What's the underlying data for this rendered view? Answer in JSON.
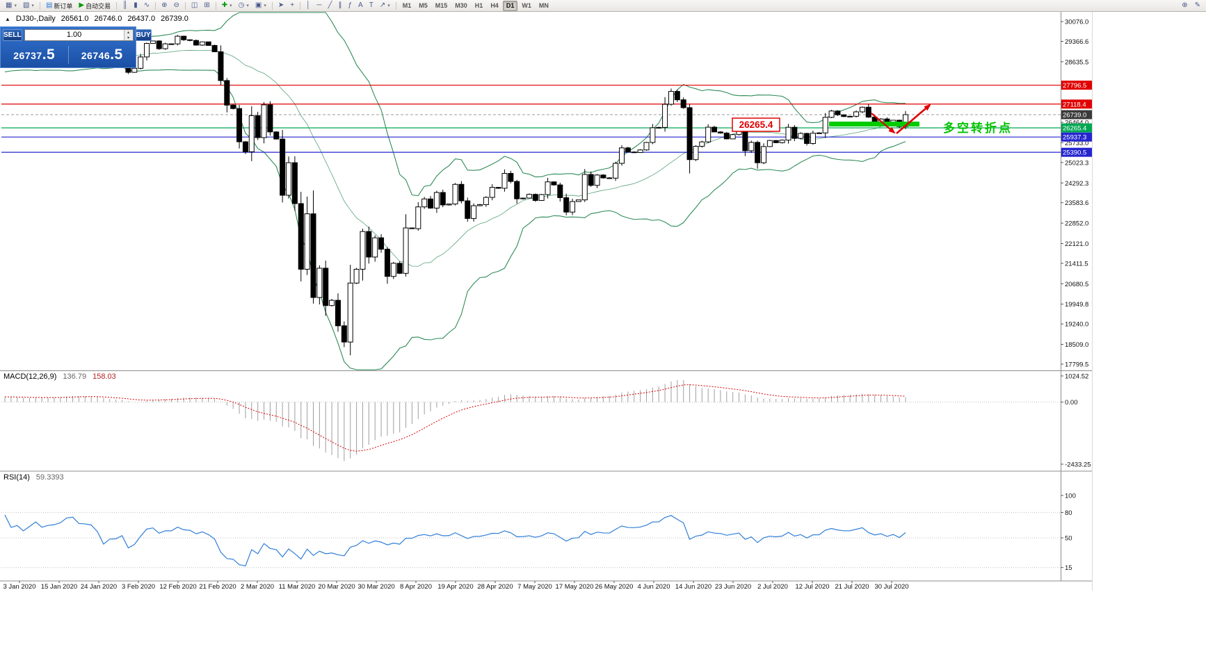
{
  "toolbar": {
    "groups": [
      {
        "items": [
          {
            "name": "new-chart",
            "glyph": "▦",
            "dropdown": true
          },
          {
            "name": "chart-profiles",
            "glyph": "▧",
            "dropdown": true
          }
        ]
      },
      {
        "items": [
          {
            "name": "new-order",
            "glyph": "▤",
            "glyph_color": "#2b7bd6",
            "label": "新订单"
          },
          {
            "name": "autotrading",
            "glyph": "▶",
            "glyph_color": "#0a9a0a",
            "label": "自动交易"
          }
        ]
      },
      {
        "items": [
          {
            "name": "bar-chart",
            "glyph": "║"
          },
          {
            "name": "candlestick-chart",
            "glyph": "▮"
          },
          {
            "name": "line-chart",
            "glyph": "∿"
          }
        ]
      },
      {
        "items": [
          {
            "name": "zoom-in",
            "glyph": "⊕"
          },
          {
            "name": "zoom-out",
            "glyph": "⊖"
          }
        ]
      },
      {
        "items": [
          {
            "name": "tile-windows",
            "glyph": "◫"
          },
          {
            "name": "auto-arrange",
            "glyph": "⊞"
          }
        ]
      },
      {
        "items": [
          {
            "name": "indicators",
            "glyph": "✚",
            "glyph_color": "#0a9a0a",
            "dropdown": true
          },
          {
            "name": "periods",
            "glyph": "◷",
            "dropdown": true
          },
          {
            "name": "templates",
            "glyph": "▣",
            "dropdown": true
          }
        ]
      },
      {
        "items": [
          {
            "name": "cursor",
            "glyph": "➤"
          },
          {
            "name": "crosshair",
            "glyph": "+"
          }
        ]
      },
      {
        "items": [
          {
            "name": "vertical-line",
            "glyph": "│"
          },
          {
            "name": "horizontal-line",
            "glyph": "─"
          },
          {
            "name": "trendline",
            "glyph": "╱"
          },
          {
            "name": "equidistant-channel",
            "glyph": "∥"
          },
          {
            "name": "fibonacci",
            "glyph": "ƒ"
          },
          {
            "name": "text",
            "glyph": "A"
          },
          {
            "name": "text-label",
            "glyph": "T"
          },
          {
            "name": "arrows",
            "glyph": "↗",
            "dropdown": true
          }
        ]
      }
    ],
    "timeframes": [
      "M1",
      "M5",
      "M15",
      "M30",
      "H1",
      "H4",
      "D1",
      "W1",
      "MN"
    ],
    "active_timeframe": "D1",
    "right_items": [
      {
        "name": "zoom-tool",
        "glyph": "⊕"
      },
      {
        "name": "edit-tool",
        "glyph": "✎"
      }
    ]
  },
  "chart": {
    "header": {
      "collapse_icon": "▲",
      "symbol_period": "DJ30-,Daily",
      "open": "26561.0",
      "high": "26746.0",
      "low": "26437.0",
      "close": "26739.0"
    },
    "annotations": {
      "price_callout": "26265.4",
      "callout_color": "#E00000",
      "turning_point_text": "多空转折点",
      "turning_point_color": "#00C300",
      "support_bar_color": "#00CC00",
      "arrow_color": "#E00000"
    },
    "hlines": [
      {
        "value": 27796.5,
        "color": "#E00000"
      },
      {
        "value": 27118.4,
        "color": "#E00000"
      },
      {
        "value": 26265.4,
        "color": "#00A651"
      },
      {
        "value": 25937.3,
        "color": "#2525CF"
      },
      {
        "value": 25390.5,
        "color": "#2525CF"
      }
    ],
    "bid_line": {
      "value": 26739.0,
      "color": "#9a9a9a"
    },
    "y_axis": {
      "plain_ticks": [
        30076.0,
        29366.6,
        28635.5,
        26464.0,
        25733.0,
        25023.3,
        24292.3,
        23583.6,
        22852.0,
        22121.0,
        21411.5,
        20680.5,
        19949.8,
        19240.0,
        18509.0,
        17799.5
      ],
      "highlight_labels": [
        {
          "text": "27796.5",
          "value": 27796.5,
          "bg": "#E00000"
        },
        {
          "text": "27118.4",
          "value": 27118.4,
          "bg": "#E00000"
        },
        {
          "text": "26739.0",
          "value": 26739.0,
          "bg": "#3A3A3A"
        },
        {
          "text": "26265.4",
          "value": 26265.4,
          "bg": "#00A651"
        },
        {
          "text": "25937.3",
          "value": 25937.3,
          "bg": "#2525CF"
        },
        {
          "text": "25390.5",
          "value": 25390.5,
          "bg": "#2525CF"
        }
      ]
    },
    "x_axis_dates": [
      "3 Jan 2020",
      "15 Jan 2020",
      "24 Jan 2020",
      "3 Feb 2020",
      "12 Feb 2020",
      "21 Feb 2020",
      "2 Mar 2020",
      "11 Mar 2020",
      "20 Mar 2020",
      "30 Mar 2020",
      "8 Apr 2020",
      "19 Apr 2020",
      "28 Apr 2020",
      "7 May 2020",
      "17 May 2020",
      "26 May 2020",
      "4 Jun 2020",
      "14 Jun 2020",
      "23 Jun 2020",
      "2 Jul 2020",
      "12 Jul 2020",
      "21 Jul 2020",
      "30 Jul 2020"
    ]
  },
  "trade_panel": {
    "sell_label": "SELL",
    "buy_label": "BUY",
    "volume": "1.00",
    "sell_price_main": "26737",
    "sell_price_frac": ".5",
    "buy_price_main": "26746",
    "buy_price_frac": ".5",
    "up_icon": "▴",
    "down_icon": "▾"
  },
  "macd_panel": {
    "title": "MACD(12,26,9)",
    "value_main": "136.79",
    "value_signal": "158.03",
    "scale_labels": [
      {
        "text": "1024.52",
        "value": 1024.52
      },
      {
        "text": "0.00",
        "value": 0
      },
      {
        "text": "-2433.25",
        "value": -2433.25
      }
    ]
  },
  "rsi_panel": {
    "title": "RSI(14)",
    "value": "59.3393",
    "scale_labels": [
      {
        "text": "100",
        "value": 100
      },
      {
        "text": "80",
        "value": 80
      },
      {
        "text": "50",
        "value": 50
      },
      {
        "text": "15",
        "value": 15
      }
    ],
    "levels": [
      80,
      50,
      15
    ]
  },
  "chart_data": {
    "type": "candlestick",
    "symbol": "DJ30",
    "period": "Daily",
    "ylim": [
      17650,
      30420
    ],
    "closes": [
      28868,
      28634,
      28703,
      28583,
      28745,
      28957,
      28824,
      28907,
      28939,
      29030,
      29297,
      29348,
      29196,
      29186,
      29160,
      28990,
      28536,
      28723,
      28734,
      28859,
      28256,
      28400,
      28808,
      29291,
      29380,
      29103,
      29277,
      29276,
      29551,
      29423,
      29398,
      29232,
      29348,
      29220,
      28992,
      27961,
      27081,
      26958,
      25767,
      25409,
      26703,
      25917,
      27091,
      26121,
      25865,
      23851,
      25018,
      23553,
      21200,
      23186,
      20188,
      21237,
      19899,
      20087,
      19174,
      18592,
      20705,
      21200,
      22552,
      21637,
      22327,
      21917,
      20944,
      21413,
      21053,
      22680,
      22654,
      23434,
      23719,
      23391,
      23950,
      23504,
      23538,
      24242,
      23651,
      23019,
      23476,
      23515,
      23775,
      24134,
      24102,
      24634,
      24346,
      23724,
      23750,
      23883,
      23665,
      23876,
      24331,
      24222,
      23765,
      23248,
      23625,
      23685,
      24597,
      24206,
      24576,
      24474,
      24465,
      24995,
      25548,
      25401,
      25383,
      25475,
      25743,
      26270,
      26282,
      27111,
      27572,
      27272,
      26990,
      25128,
      25605,
      25763,
      26290,
      26120,
      26080,
      25871,
      26025,
      26156,
      25446,
      25746,
      25016,
      25596,
      25813,
      25735,
      25827,
      26287,
      25890,
      26067,
      25706,
      26075,
      26085,
      26643,
      26870,
      26735,
      26672,
      26681,
      26840,
      27006,
      26652,
      26470,
      26585,
      26379,
      26540,
      26313,
      26739
    ],
    "warmup_closes": [
      27046,
      27110,
      27180,
      27340,
      27400,
      27520,
      27680,
      27780,
      27820,
      27900,
      27760,
      27850,
      28000,
      28050,
      28120,
      28080,
      28160,
      28240,
      28290,
      28350,
      28240,
      28300,
      28390,
      28440,
      28500,
      28460,
      28420,
      28515,
      28550,
      28480,
      28420,
      28390,
      28460,
      28540,
      28600,
      28640,
      28690,
      28620,
      28580,
      28640
    ],
    "indicators": {
      "bollinger": {
        "period": 20,
        "deviation": 2,
        "color": "#2E8B57"
      },
      "macd": {
        "fast": 12,
        "slow": 26,
        "signal": 9
      },
      "rsi": {
        "period": 14
      }
    }
  }
}
